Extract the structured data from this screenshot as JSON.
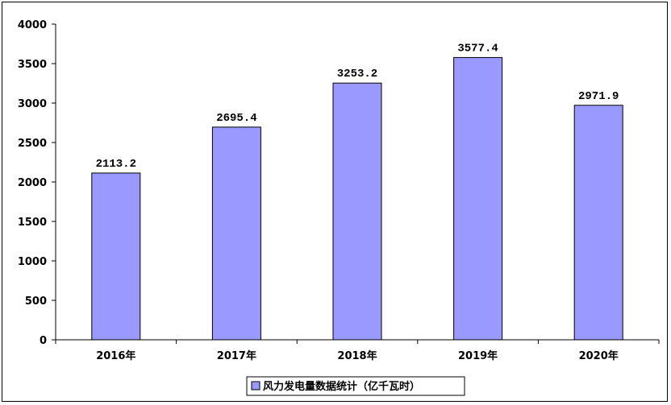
{
  "chart_data": {
    "type": "bar",
    "categories": [
      "2016年",
      "2017年",
      "2018年",
      "2019年",
      "2020年"
    ],
    "series": [
      {
        "name": "风力发电量数据统计（亿千瓦时）",
        "values": [
          2113.2,
          2695.4,
          3253.2,
          3577.4,
          2971.9
        ]
      }
    ],
    "data_labels": [
      "2113.2",
      "2695.4",
      "3253.2",
      "3577.4",
      "2971.9"
    ],
    "y_ticks": [
      "0",
      "500",
      "1000",
      "1500",
      "2000",
      "2500",
      "3000",
      "3500",
      "4000"
    ],
    "ylim": [
      0,
      4000
    ],
    "grid": false,
    "legend_position": "bottom",
    "colors": {
      "bar_fill": "#9999ff",
      "bar_stroke": "#000000",
      "axis": "#000000"
    }
  }
}
